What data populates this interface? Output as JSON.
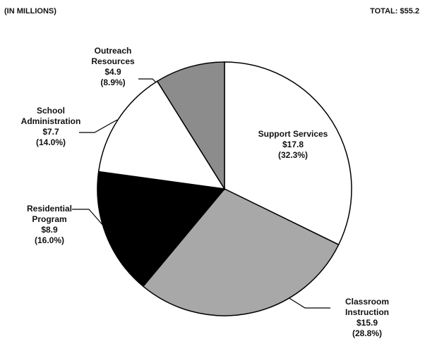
{
  "chart_data": {
    "type": "pie",
    "title": "(IN MILLIONS)",
    "subtitle": "TOTAL: $55.2",
    "categories": [
      "Support Services",
      "Classroom Instruction",
      "Residential Program",
      "School Administration",
      "Outreach Resources"
    ],
    "values": [
      17.8,
      15.9,
      8.9,
      7.7,
      4.9
    ],
    "value_labels": [
      "$17.8",
      "$15.9",
      "$8.9",
      "$7.7",
      "$4.9"
    ],
    "percents": [
      32.3,
      28.8,
      16.0,
      14.0,
      8.9
    ],
    "percent_labels": [
      "(32.3%)",
      "(28.8%)",
      "(16.0%)",
      "(14.0%)",
      "(8.9%)"
    ],
    "colors": [
      "#ffffff",
      "#a8a8a8",
      "#000000",
      "#ffffff",
      "#8c8c8c"
    ]
  }
}
